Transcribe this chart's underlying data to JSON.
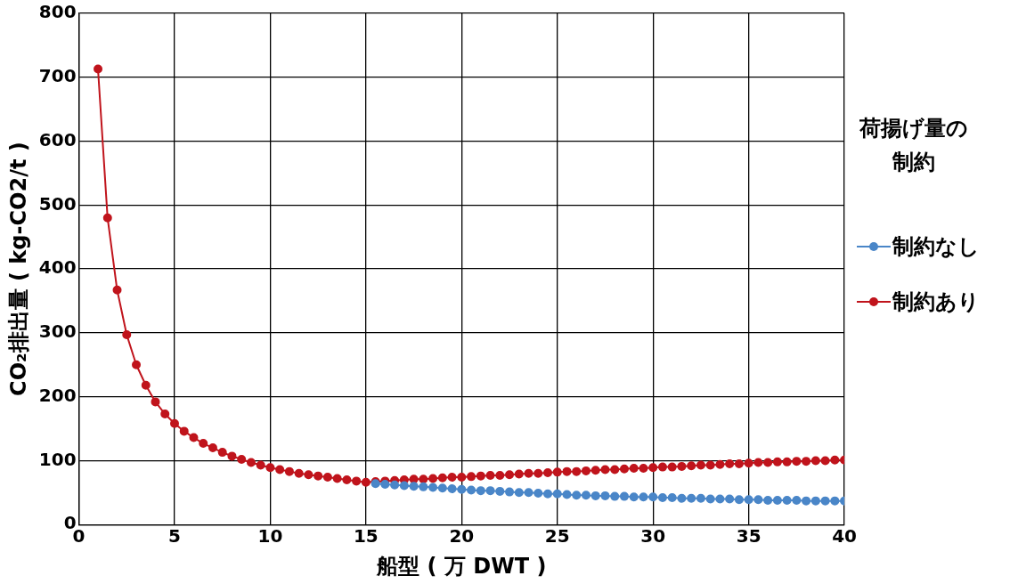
{
  "chart_data": {
    "type": "line",
    "xlabel": "船型 ( 万 DWT )",
    "ylabel": "CO₂排出量 ( kg-CO2/t )",
    "legend_title": "荷揚げ量の制約",
    "legend": "right",
    "grid": true,
    "marker": "circle",
    "line_style": "solid",
    "x": [
      1,
      1.5,
      2,
      2.5,
      3,
      3.5,
      4,
      4.5,
      5,
      5.5,
      6,
      6.5,
      7,
      7.5,
      8,
      8.5,
      9,
      9.5,
      10,
      10.5,
      11,
      11.5,
      12,
      12.5,
      13,
      13.5,
      14,
      14.5,
      15,
      15.5,
      16,
      16.5,
      17,
      17.5,
      18,
      18.5,
      19,
      19.5,
      20,
      20.5,
      21,
      21.5,
      22,
      22.5,
      23,
      23.5,
      24,
      24.5,
      25,
      25.5,
      26,
      26.5,
      27,
      27.5,
      28,
      28.5,
      29,
      29.5,
      30,
      30.5,
      31,
      31.5,
      32,
      32.5,
      33,
      33.5,
      34,
      34.5,
      35,
      35.5,
      36,
      36.5,
      37,
      37.5,
      38,
      38.5,
      39,
      39.5,
      40
    ],
    "xlim": [
      0,
      40
    ],
    "xticks": [
      0,
      5,
      10,
      15,
      20,
      25,
      30,
      35,
      40
    ],
    "ylim": [
      0,
      800
    ],
    "yticks": [
      0,
      100,
      200,
      300,
      400,
      500,
      600,
      700,
      800
    ],
    "series": [
      {
        "name": "制約なし",
        "color": "#4a86c8",
        "values": [
          null,
          null,
          null,
          null,
          null,
          null,
          null,
          null,
          null,
          null,
          null,
          null,
          null,
          null,
          null,
          null,
          null,
          null,
          null,
          null,
          null,
          null,
          null,
          null,
          null,
          null,
          null,
          null,
          null,
          64,
          63,
          62,
          61,
          60,
          59,
          58,
          57,
          56,
          55,
          54,
          53,
          53,
          52,
          51,
          50,
          50,
          49,
          48,
          48,
          47,
          46,
          46,
          45,
          45,
          44,
          44,
          43,
          43,
          43,
          42,
          42,
          41,
          41,
          41,
          40,
          40,
          40,
          39,
          39,
          39,
          38,
          38,
          38,
          38,
          37,
          37,
          37,
          37,
          37
        ]
      },
      {
        "name": "制約あり",
        "color": "#c0141c",
        "values": [
          713,
          480,
          367,
          297,
          250,
          218,
          192,
          173,
          158,
          146,
          136,
          127,
          120,
          113,
          107,
          102,
          97,
          93,
          89,
          86,
          83,
          80,
          78,
          76,
          74,
          72,
          70,
          68,
          66,
          67,
          68,
          69,
          70,
          71,
          71,
          72,
          73,
          74,
          74,
          75,
          76,
          77,
          77,
          78,
          79,
          80,
          80,
          81,
          82,
          83,
          83,
          84,
          85,
          86,
          86,
          87,
          88,
          88,
          89,
          90,
          90,
          91,
          92,
          93,
          93,
          94,
          95,
          95,
          96,
          97,
          97,
          98,
          98,
          99,
          99,
          100,
          100,
          101,
          101
        ]
      }
    ]
  }
}
